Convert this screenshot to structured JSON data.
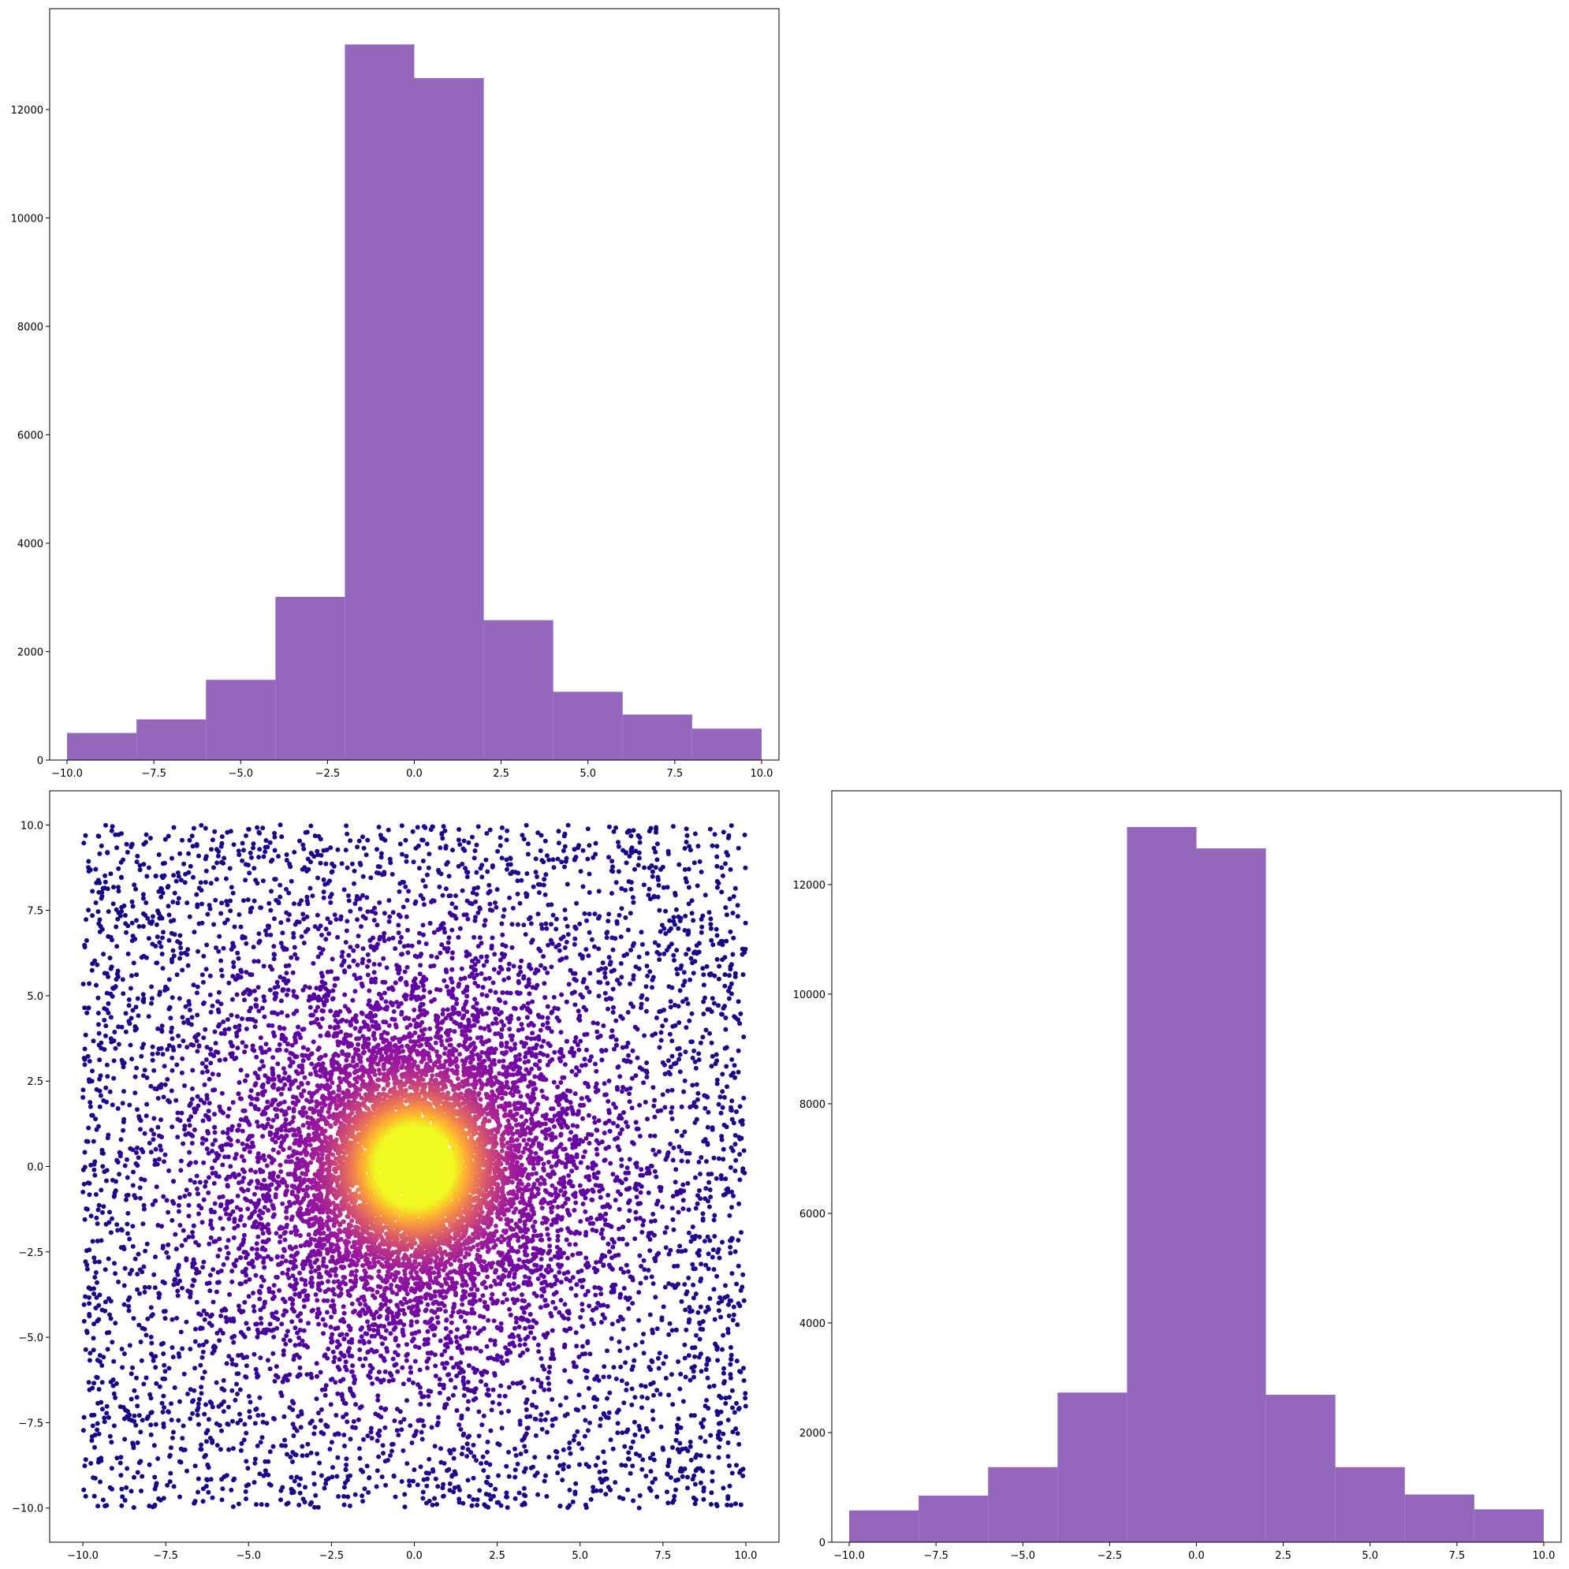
{
  "chart_data": [
    {
      "panel": "top-left",
      "type": "bar",
      "title": "",
      "xlabel": "",
      "ylabel": "",
      "bin_edges": [
        -10,
        -8,
        -6,
        -4,
        -2,
        0,
        2,
        4,
        6,
        8,
        10
      ],
      "values": [
        500,
        750,
        1480,
        3010,
        13200,
        12580,
        2580,
        1260,
        840,
        580
      ],
      "xlim": [
        -10.5,
        10.5
      ],
      "ylim": [
        0,
        13860
      ],
      "xticks": [
        -10,
        -7.5,
        -5,
        -2.5,
        0,
        2.5,
        5,
        7.5,
        10
      ],
      "xtick_labels": [
        "−10.0",
        "−7.5",
        "−5.0",
        "−2.5",
        "0.0",
        "2.5",
        "5.0",
        "7.5",
        "10.0"
      ],
      "yticks": [
        0,
        2000,
        4000,
        6000,
        8000,
        10000,
        12000
      ],
      "ytick_labels": [
        "0",
        "2000",
        "4000",
        "6000",
        "8000",
        "10000",
        "12000"
      ],
      "color": "#9467bd",
      "grid": false
    },
    {
      "panel": "bottom-left",
      "type": "scatter",
      "title": "",
      "xlabel": "",
      "ylabel": "",
      "description_of_data": "uniform points in [-10,10]^2 with dense radially-concentrated cluster near (0,0); colored by local density (plasma colormap)",
      "xlim": [
        -11,
        11
      ],
      "ylim": [
        -11,
        11
      ],
      "xticks": [
        -10,
        -7.5,
        -5,
        -2.5,
        0,
        2.5,
        5,
        7.5,
        10
      ],
      "xtick_labels": [
        "−10.0",
        "−7.5",
        "−5.0",
        "−2.5",
        "0.0",
        "2.5",
        "5.0",
        "7.5",
        "10.0"
      ],
      "yticks": [
        -10,
        -7.5,
        -5,
        -2.5,
        0,
        2.5,
        5,
        7.5,
        10
      ],
      "ytick_labels": [
        "−10.0",
        "−7.5",
        "−5.0",
        "−2.5",
        "0.0",
        "2.5",
        "5.0",
        "7.5",
        "10.0"
      ],
      "colormap": [
        "#0d0887",
        "#5c01a6",
        "#9c179e",
        "#cc4778",
        "#ed7953",
        "#fdb42f",
        "#f0f921"
      ],
      "grid": false
    },
    {
      "panel": "bottom-right",
      "type": "bar",
      "title": "",
      "xlabel": "",
      "ylabel": "",
      "bin_edges": [
        -10,
        -8,
        -6,
        -4,
        -2,
        0,
        2,
        4,
        6,
        8,
        10
      ],
      "values": [
        580,
        850,
        1370,
        2730,
        13050,
        12660,
        2690,
        1370,
        870,
        600
      ],
      "xlim": [
        -10.5,
        10.5
      ],
      "ylim": [
        0,
        13710
      ],
      "xticks": [
        -10,
        -7.5,
        -5,
        -2.5,
        0,
        2.5,
        5,
        7.5,
        10
      ],
      "xtick_labels": [
        "−10.0",
        "−7.5",
        "−5.0",
        "−2.5",
        "0.0",
        "2.5",
        "5.0",
        "7.5",
        "10.0"
      ],
      "yticks": [
        0,
        2000,
        4000,
        6000,
        8000,
        10000,
        12000
      ],
      "ytick_labels": [
        "0",
        "2000",
        "4000",
        "6000",
        "8000",
        "10000",
        "12000"
      ],
      "color": "#9467bd",
      "grid": false
    }
  ]
}
